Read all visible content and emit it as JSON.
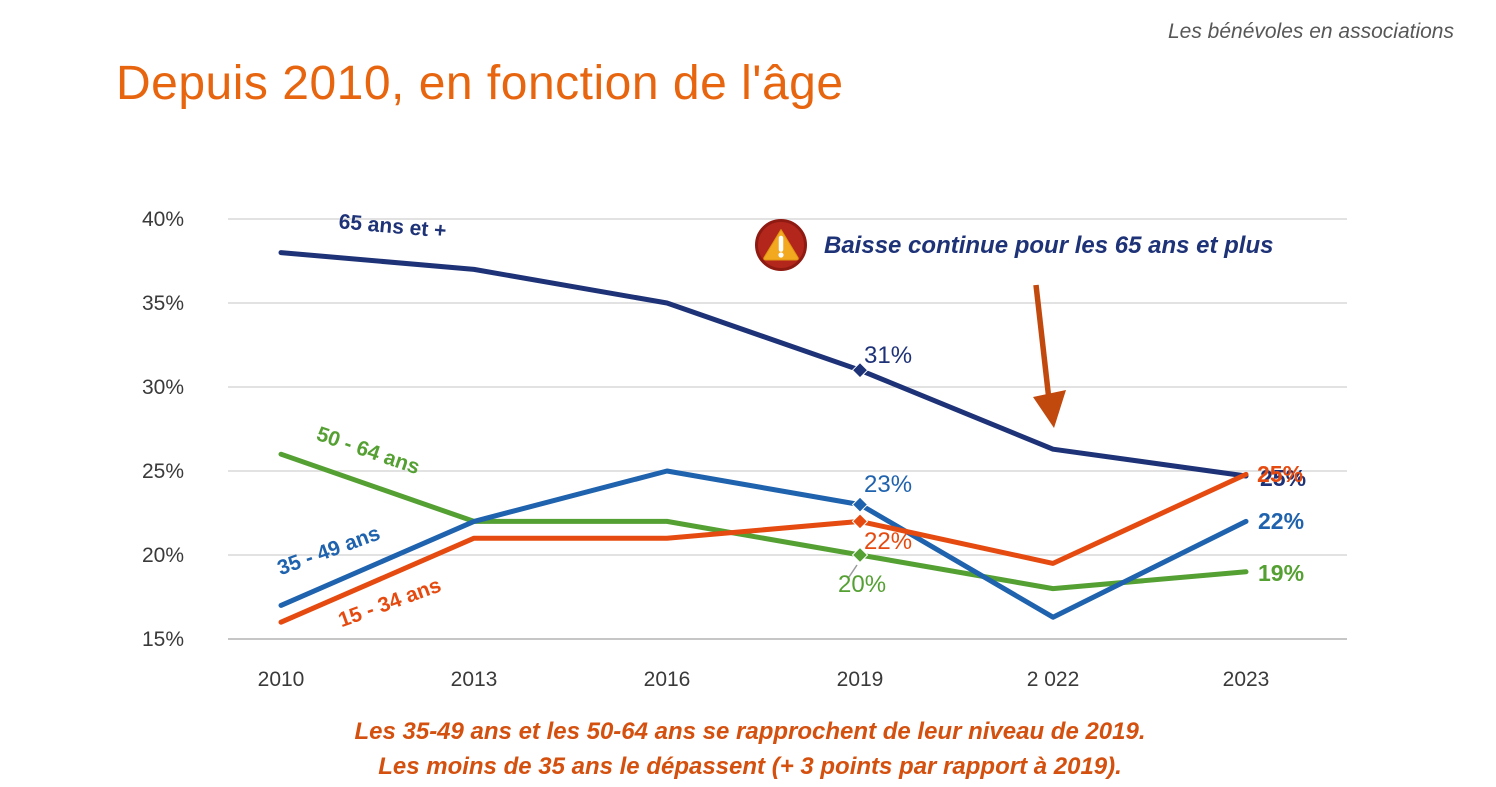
{
  "header": {
    "brand": "Les bénévoles en associations"
  },
  "title": "Depuis 2010, en fonction de l'âge",
  "annotation": {
    "icon": "warning-icon",
    "text": "Baisse continue pour les 65 ans et plus",
    "arrow_color": "#C2490E"
  },
  "captions": [
    "Les 35-49 ans et les 50-64 ans se rapprochent de leur niveau de 2019.",
    "Les moins de 35 ans le dépassent (+ 3 points par rapport à 2019)."
  ],
  "colors": {
    "title": "#E8650F",
    "caption": "#D4500F",
    "navy": "#1E3277",
    "blue": "#1F62AD",
    "green": "#55A033",
    "orange": "#E54B10",
    "gridline": "#D9D9D9",
    "axis_text": "#3A3A3A"
  },
  "chart_data": {
    "type": "line",
    "title": "Depuis 2010, en fonction de l'âge",
    "xlabel": "",
    "ylabel": "",
    "categories": [
      "2010",
      "2013",
      "2016",
      "2019",
      "2 022",
      "2023"
    ],
    "ylim": [
      15,
      40
    ],
    "yticks": [
      15,
      20,
      25,
      30,
      35,
      40
    ],
    "ytick_labels": [
      "15%",
      "20%",
      "25%",
      "30%",
      "35%",
      "40%"
    ],
    "grid": true,
    "legend_position": "inline-labels",
    "series": [
      {
        "name": "65 ans et +",
        "color": "#1E3277",
        "values": [
          38,
          37,
          35,
          31,
          26.3,
          24.7
        ],
        "label_2019": "31%",
        "label_end": "25%"
      },
      {
        "name": "50 - 64 ans",
        "color": "#55A033",
        "values": [
          26,
          22,
          22,
          20,
          18,
          19
        ],
        "label_2019": "20%",
        "label_end": "19%"
      },
      {
        "name": "35 - 49 ans",
        "color": "#1F62AD",
        "values": [
          17,
          22,
          25,
          23,
          16.3,
          22
        ],
        "label_2019": "23%",
        "label_end": "22%"
      },
      {
        "name": "15 - 34 ans",
        "color": "#E54B10",
        "values": [
          16,
          21,
          21,
          22,
          19.5,
          24.8
        ],
        "label_2019": "22%",
        "label_end": "25%"
      }
    ],
    "annotations": [
      {
        "text": "Baisse continue pour les 65 ans et plus",
        "target_series": "65 ans et +",
        "target_x": "2 022"
      }
    ]
  }
}
